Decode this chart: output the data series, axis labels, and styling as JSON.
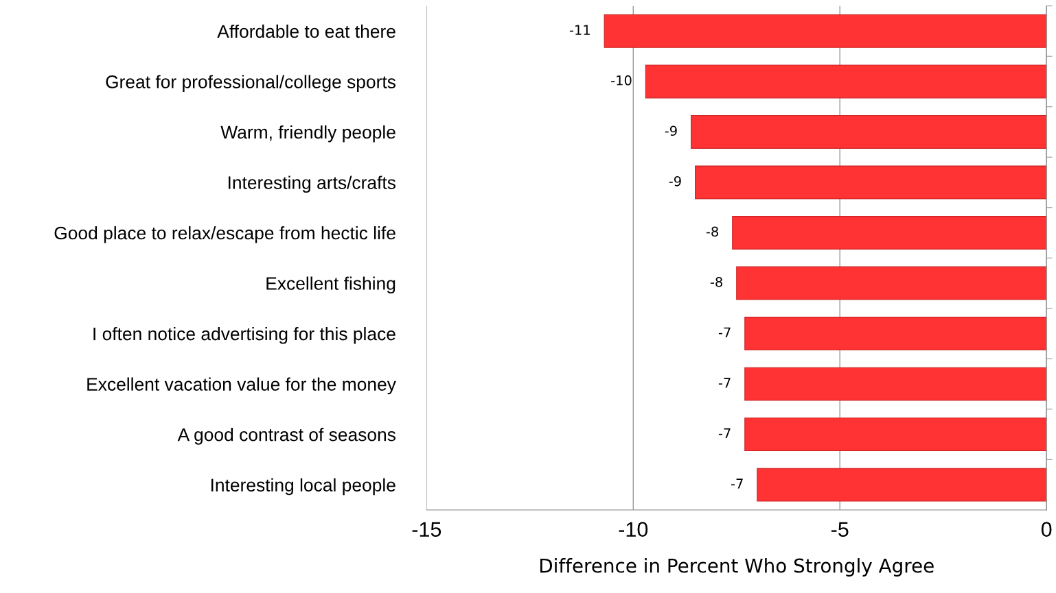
{
  "chart_data": {
    "type": "bar",
    "orientation": "horizontal",
    "xlabel": "Difference in Percent Who Strongly Agree",
    "categories": [
      "Affordable to eat there",
      "Great for professional/college sports",
      "Warm, friendly people",
      "Interesting arts/crafts",
      "Good place to relax/escape from hectic life",
      "Excellent fishing",
      "I often notice advertising for this place",
      "Excellent vacation value for the money",
      "A good contrast of seasons",
      "Interesting local people"
    ],
    "values": [
      -10.7,
      -9.7,
      -8.6,
      -8.5,
      -7.6,
      -7.5,
      -7.3,
      -7.3,
      -7.3,
      -7.0
    ],
    "value_labels": [
      "-11",
      "-10",
      "-9",
      "-9",
      "-8",
      "-8",
      "-7",
      "-7",
      "-7",
      "-7"
    ],
    "color": "#ff3333",
    "xlim": [
      -15,
      0
    ],
    "xticks": [
      -15,
      -10,
      -5,
      0
    ],
    "grid": "x",
    "legend": false
  }
}
